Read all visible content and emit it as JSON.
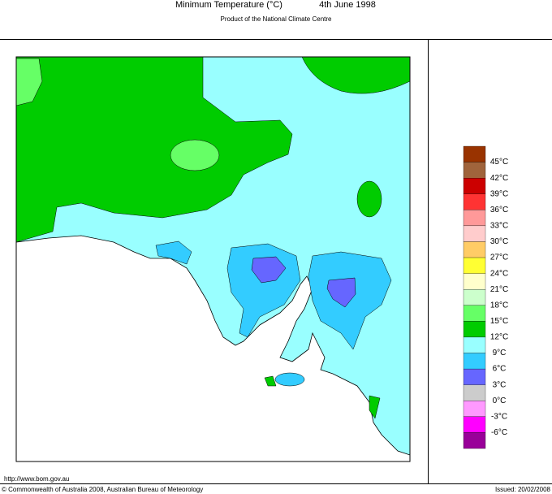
{
  "header": {
    "title": "Minimum Temperature (°C)",
    "date": "4th June 1998",
    "subtitle": "Product of the National Climate Centre"
  },
  "legend": {
    "colors": [
      "#993300",
      "#a0643c",
      "#cc0000",
      "#ff3333",
      "#ff9999",
      "#ffcccc",
      "#ffcc66",
      "#ffff33",
      "#ffffcc",
      "#ccffcc",
      "#66ff66",
      "#00cc00",
      "#99ffff",
      "#33ccff",
      "#6666ff",
      "#cccccc",
      "#ff99ff",
      "#ff00ff",
      "#990099"
    ],
    "labels": [
      "45°C",
      "42°C",
      "39°C",
      "36°C",
      "33°C",
      "30°C",
      "27°C",
      "24°C",
      "21°C",
      "18°C",
      "15°C",
      "12°C",
      "9°C",
      "6°C",
      "3°C",
      "0°C",
      "-3°C",
      "-6°C"
    ]
  },
  "footer": {
    "url": "http://www.bom.gov.au",
    "copyright": "© Commonwealth of Australia 2008, Australian Bureau of Meteorology",
    "issued": "Issued: 20/02/2008"
  }
}
